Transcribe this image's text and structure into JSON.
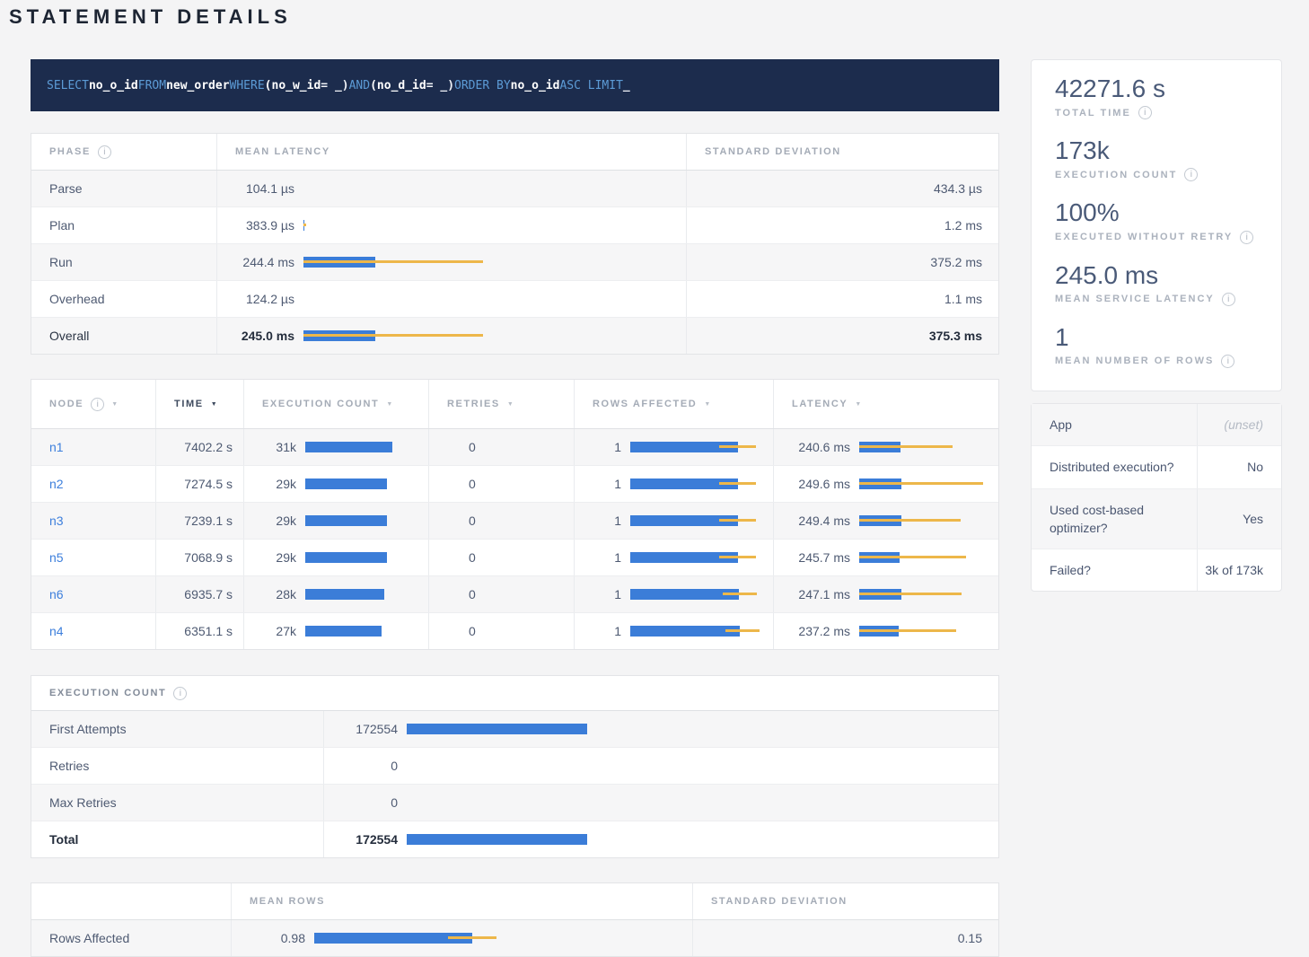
{
  "page": {
    "title": "STATEMENT DETAILS"
  },
  "colors": {
    "bar_blue": "#3b7dd8",
    "bar_orange": "#edb74a",
    "sql_bg": "#1c2c4d",
    "link_blue": "#3d7fdc"
  },
  "icons": {
    "info": "i",
    "sort_desc": "▼"
  },
  "sql": {
    "tokens": [
      {
        "t": "SELECT",
        "c": "kw"
      },
      {
        "t": "no_o_id",
        "c": "id"
      },
      {
        "t": "FROM",
        "c": "kw"
      },
      {
        "t": "new_order",
        "c": "id"
      },
      {
        "t": "WHERE",
        "c": "kw"
      },
      {
        "t": "(no_w_id",
        "c": "id"
      },
      {
        "t": "= _)",
        "c": "pl"
      },
      {
        "t": "AND",
        "c": "kw"
      },
      {
        "t": "(no_d_id",
        "c": "id"
      },
      {
        "t": "= _)",
        "c": "pl"
      },
      {
        "t": "ORDER BY",
        "c": "kw"
      },
      {
        "t": "no_o_id",
        "c": "id"
      },
      {
        "t": "ASC LIMIT",
        "c": "kw"
      },
      {
        "t": "_",
        "c": "pl"
      }
    ]
  },
  "phase_table": {
    "headers": {
      "phase": "PHASE",
      "mean": "MEAN LATENCY",
      "std": "STANDARD DEVIATION"
    },
    "rows": [
      {
        "phase": "Parse",
        "mean": "104.1 µs",
        "std": "434.3 µs"
      },
      {
        "phase": "Plan",
        "mean": "383.9 µs",
        "std": "1.2 ms",
        "bar": {
          "bar": 1,
          "w0": 0,
          "w1": 3
        }
      },
      {
        "phase": "Run",
        "mean": "244.4 ms",
        "std": "375.2 ms",
        "bar": {
          "bar": 80,
          "w0": 0,
          "w1": 200
        }
      },
      {
        "phase": "Overhead",
        "mean": "124.2 µs",
        "std": "1.1 ms"
      },
      {
        "phase": "Overall",
        "mean": "245.0 ms",
        "std": "375.3 ms",
        "bar": {
          "bar": 80,
          "w0": 0,
          "w1": 200
        }
      }
    ]
  },
  "node_table": {
    "headers": [
      "NODE",
      "TIME",
      "EXECUTION COUNT",
      "RETRIES",
      "ROWS AFFECTED",
      "LATENCY"
    ],
    "rows": [
      {
        "node": "n1",
        "time": "7402.2 s",
        "count": "31k",
        "count_bar": 97,
        "retries": "0",
        "rows": "1",
        "rows_bar": {
          "bar": 120,
          "w0": 99,
          "w1": 140
        },
        "latency": "240.6 ms",
        "lat_bar": {
          "bar": 46,
          "w0": 0,
          "w1": 104
        }
      },
      {
        "node": "n2",
        "time": "7274.5 s",
        "count": "29k",
        "count_bar": 91,
        "retries": "0",
        "rows": "1",
        "rows_bar": {
          "bar": 120,
          "w0": 99,
          "w1": 140
        },
        "latency": "249.6 ms",
        "lat_bar": {
          "bar": 47,
          "w0": 0,
          "w1": 138
        }
      },
      {
        "node": "n3",
        "time": "7239.1 s",
        "count": "29k",
        "count_bar": 91,
        "retries": "0",
        "rows": "1",
        "rows_bar": {
          "bar": 120,
          "w0": 99,
          "w1": 140
        },
        "latency": "249.4 ms",
        "lat_bar": {
          "bar": 47,
          "w0": 0,
          "w1": 113
        }
      },
      {
        "node": "n5",
        "time": "7068.9 s",
        "count": "29k",
        "count_bar": 91,
        "retries": "0",
        "rows": "1",
        "rows_bar": {
          "bar": 120,
          "w0": 99,
          "w1": 140
        },
        "latency": "245.7 ms",
        "lat_bar": {
          "bar": 45,
          "w0": 0,
          "w1": 119
        }
      },
      {
        "node": "n6",
        "time": "6935.7 s",
        "count": "28k",
        "count_bar": 88,
        "retries": "0",
        "rows": "1",
        "rows_bar": {
          "bar": 121,
          "w0": 103,
          "w1": 141
        },
        "latency": "247.1 ms",
        "lat_bar": {
          "bar": 47,
          "w0": 0,
          "w1": 114
        }
      },
      {
        "node": "n4",
        "time": "6351.1 s",
        "count": "27k",
        "count_bar": 85,
        "retries": "0",
        "rows": "1",
        "rows_bar": {
          "bar": 122,
          "w0": 106,
          "w1": 144
        },
        "latency": "237.2 ms",
        "lat_bar": {
          "bar": 44,
          "w0": 0,
          "w1": 108
        }
      }
    ]
  },
  "exec_table": {
    "title": "EXECUTION COUNT",
    "rows": [
      {
        "label": "First Attempts",
        "value": "172554",
        "bar": 201
      },
      {
        "label": "Retries",
        "value": "0"
      },
      {
        "label": "Max Retries",
        "value": "0"
      },
      {
        "label": "Total",
        "value": "172554",
        "bar": 201
      }
    ]
  },
  "rows_table": {
    "headers": {
      "mean": "MEAN ROWS",
      "std": "STANDARD DEVIATION"
    },
    "row": {
      "label": "Rows Affected",
      "mean": "0.98",
      "bar": {
        "bar": 176,
        "w0": 149,
        "w1": 203
      },
      "std": "0.15"
    }
  },
  "sidebar": {
    "stats": [
      {
        "value": "42271.6 s",
        "label": "TOTAL TIME"
      },
      {
        "value": "173k",
        "label": "EXECUTION COUNT"
      },
      {
        "value": "100%",
        "label": "EXECUTED WITHOUT RETRY"
      },
      {
        "value": "245.0 ms",
        "label": "MEAN SERVICE LATENCY"
      },
      {
        "value": "1",
        "label": "MEAN NUMBER OF ROWS"
      }
    ],
    "details": [
      {
        "label": "App",
        "value": "(unset)"
      },
      {
        "label": "Distributed execution?",
        "value": "No"
      },
      {
        "label": "Used cost-based optimizer?",
        "value": "Yes"
      },
      {
        "label": "Failed?",
        "value": "3k of 173k"
      }
    ]
  }
}
